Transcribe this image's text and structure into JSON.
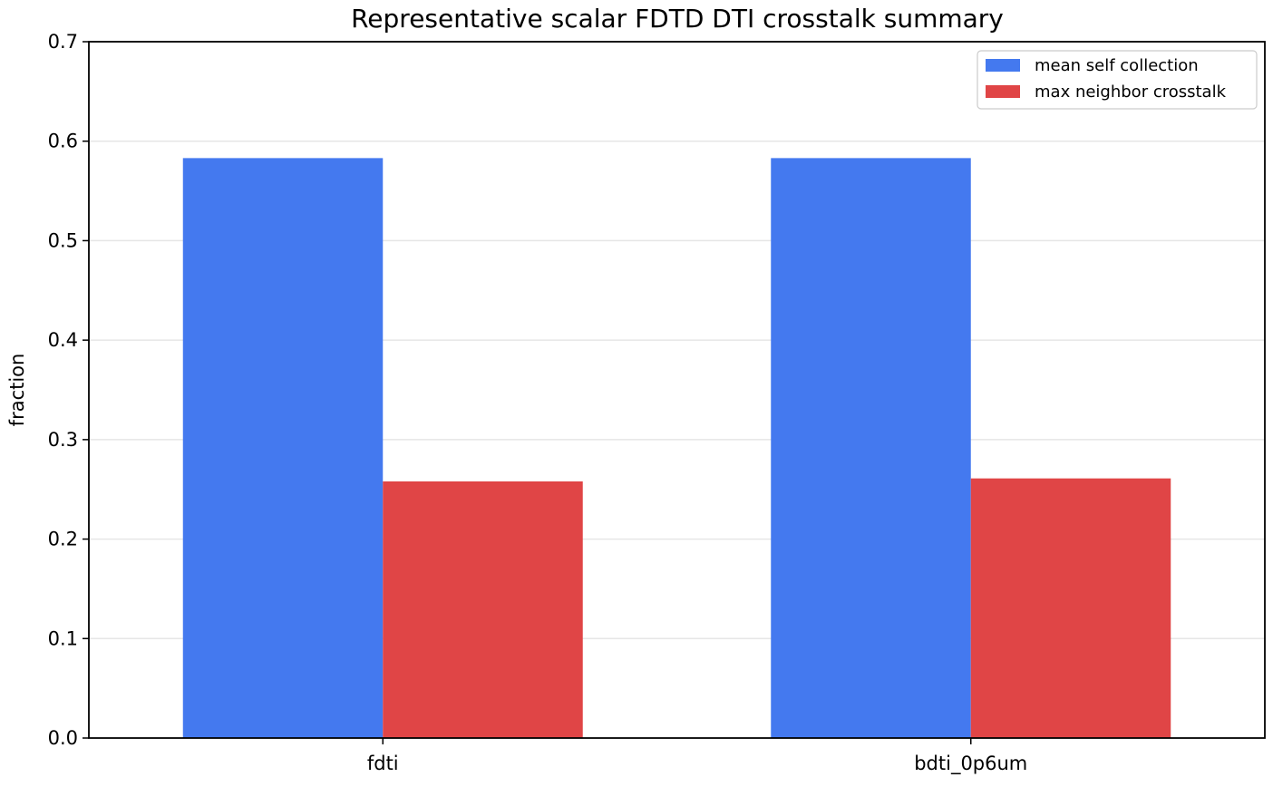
{
  "chart_data": {
    "type": "bar",
    "title": "Representative scalar FDTD DTI crosstalk summary",
    "xlabel": "",
    "ylabel": "fraction",
    "categories": [
      "fdti",
      "bdti_0p6um"
    ],
    "series": [
      {
        "name": "mean self collection",
        "values": [
          0.583,
          0.583
        ],
        "color": "#4479ef"
      },
      {
        "name": "max neighbor crosstalk",
        "values": [
          0.258,
          0.261
        ],
        "color": "#e04546"
      }
    ],
    "ylim": [
      0,
      0.7
    ],
    "yticks": [
      "0.0",
      "0.1",
      "0.2",
      "0.3",
      "0.4",
      "0.5",
      "0.6",
      "0.7"
    ],
    "grid": "horizontal",
    "legend_position": "top-right"
  }
}
